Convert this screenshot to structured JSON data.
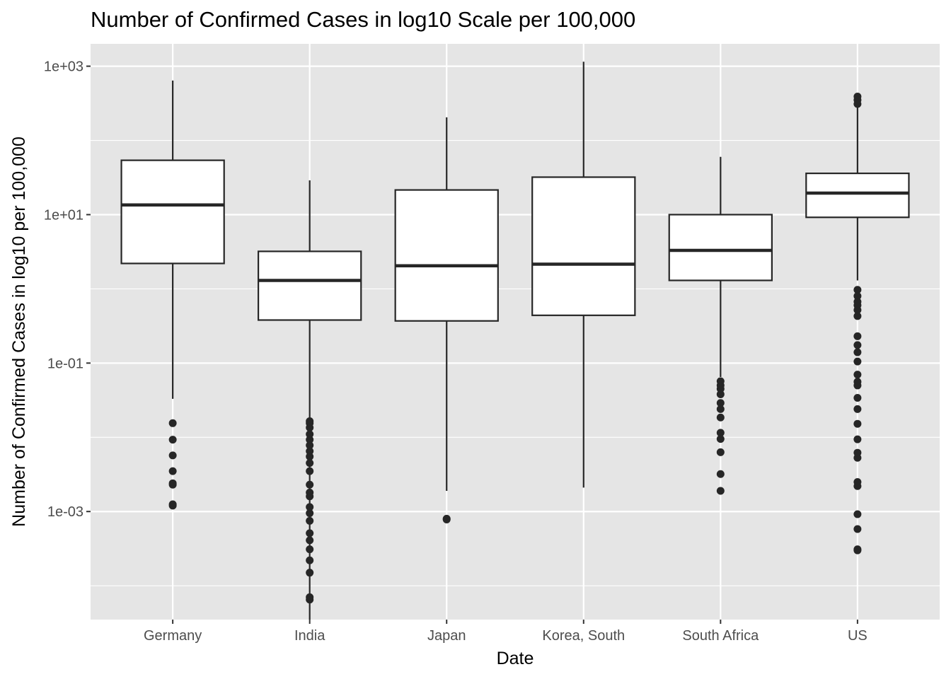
{
  "chart_data": {
    "type": "boxplot",
    "title": "Number of Confirmed Cases in log10 Scale per 100,000",
    "xlabel": "Date",
    "ylabel": "Number of Confirmed Cases in log10 per 100,000",
    "y_scale": "log10",
    "ylim": [
      3.5e-05,
      2000
    ],
    "y_ticks": [
      0.001,
      0.1,
      10,
      1000
    ],
    "y_tick_labels": [
      "1e-03",
      "1e-01",
      "1e+01",
      "1e+03"
    ],
    "y_minor_ticks": [
      0.0001,
      0.01,
      1,
      100
    ],
    "grid": true,
    "background": "#e5e5e5",
    "grid_color": "#ffffff",
    "box_fill": "#ffffff",
    "line_color": "#262626",
    "categories": [
      "Germany",
      "India",
      "Japan",
      "Korea, South",
      "South Africa",
      "US"
    ],
    "boxes": [
      {
        "category": "Germany",
        "whisker_low": 0.033,
        "q1": 2.2,
        "median": 13.5,
        "q3": 54,
        "whisker_high": 640,
        "outliers": [
          0.0012,
          0.00125,
          0.0023,
          0.0024,
          0.0035,
          0.0057,
          0.0093,
          0.0155
        ]
      },
      {
        "category": "India",
        "whisker_low": 0.0,
        "q1": 0.38,
        "median": 1.3,
        "q3": 3.2,
        "whisker_high": 29,
        "outliers": [
          6.5e-05,
          7e-05,
          0.00015,
          0.00022,
          0.00031,
          0.00041,
          0.00051,
          0.00075,
          0.00095,
          0.00115,
          0.0016,
          0.0018,
          0.0023,
          0.0035,
          0.0045,
          0.0055,
          0.0065,
          0.0078,
          0.0093,
          0.011,
          0.0135,
          0.0155,
          0.0165
        ]
      },
      {
        "category": "Japan",
        "whisker_low": 0.0019,
        "q1": 0.37,
        "median": 2.05,
        "q3": 21.5,
        "whisker_high": 205,
        "outliers": [
          0.00078,
          0.0008
        ]
      },
      {
        "category": "Korea, South",
        "whisker_low": 0.0021,
        "q1": 0.44,
        "median": 2.15,
        "q3": 32,
        "whisker_high": 1150,
        "outliers": []
      },
      {
        "category": "South Africa",
        "whisker_low": 0.065,
        "q1": 1.3,
        "median": 3.3,
        "q3": 10,
        "whisker_high": 60,
        "outliers": [
          0.0019,
          0.0032,
          0.0063,
          0.0095,
          0.0115,
          0.0185,
          0.024,
          0.029,
          0.038,
          0.045,
          0.05,
          0.057
        ]
      },
      {
        "category": "US",
        "whisker_low": 1.3,
        "q1": 9.2,
        "median": 19.5,
        "q3": 36,
        "whisker_high": 310,
        "outliers": [
          0.0003,
          0.00031,
          0.00058,
          0.00092,
          0.0022,
          0.0025,
          0.0053,
          0.0062,
          0.0094,
          0.0152,
          0.024,
          0.034,
          0.05,
          0.056,
          0.07,
          0.105,
          0.14,
          0.175,
          0.23,
          0.43,
          0.52,
          0.6,
          0.67,
          0.8,
          0.97,
          310,
          350,
          390
        ]
      }
    ]
  }
}
